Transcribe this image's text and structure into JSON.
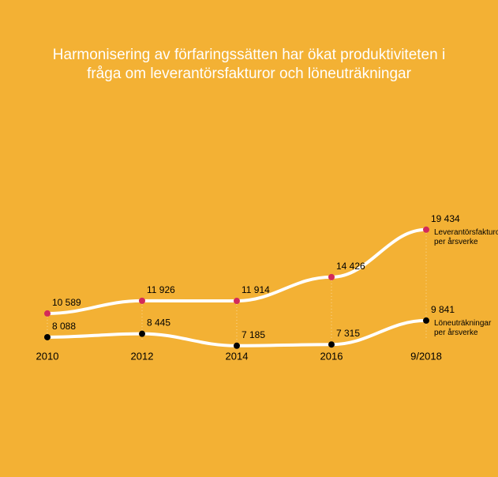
{
  "title": "Harmonisering av förfaringssätten har ökat produktiviteten i fråga om leverantörsfakturor och löneuträkningar",
  "chart": {
    "type": "line",
    "background_color": "#f3b134",
    "title_color": "#ffffff",
    "title_fontsize": 19,
    "x_categories": [
      "2010",
      "2012",
      "2014",
      "2016",
      "9/2018"
    ],
    "x_label_fontsize": 13,
    "x_label_color": "#000000",
    "gridline_color": "#ffffff",
    "gridline_opacity": 0.5,
    "gridline_dash": "1 3",
    "series": [
      {
        "id": "leverantorsfakturor",
        "label_lines": [
          "Leverantörsfakturor",
          "per årsverke"
        ],
        "values": [
          10589,
          11926,
          11914,
          14426,
          19434
        ],
        "line_color": "#ffffff",
        "line_width": 4,
        "marker_color": "#d32a5a",
        "marker_radius": 4,
        "value_label_color": "#000000",
        "value_label_fontsize": 12,
        "series_label_color": "#000000",
        "series_label_fontsize": 10
      },
      {
        "id": "loneutrakningar",
        "label_lines": [
          "Löneuträkningar",
          "per årsverke"
        ],
        "values": [
          8088,
          8445,
          7185,
          7315,
          9841
        ],
        "line_color": "#ffffff",
        "line_width": 4,
        "marker_color": "#000000",
        "marker_radius": 4,
        "value_label_color": "#000000",
        "value_label_fontsize": 12,
        "series_label_color": "#000000",
        "series_label_fontsize": 10
      }
    ],
    "plot": {
      "x_start": 60,
      "x_step": 120,
      "y_baseline": 440,
      "y_scale": 0.012,
      "y_offset": 7000,
      "axis_label_y": 440,
      "gridline_bottom": 430
    }
  }
}
